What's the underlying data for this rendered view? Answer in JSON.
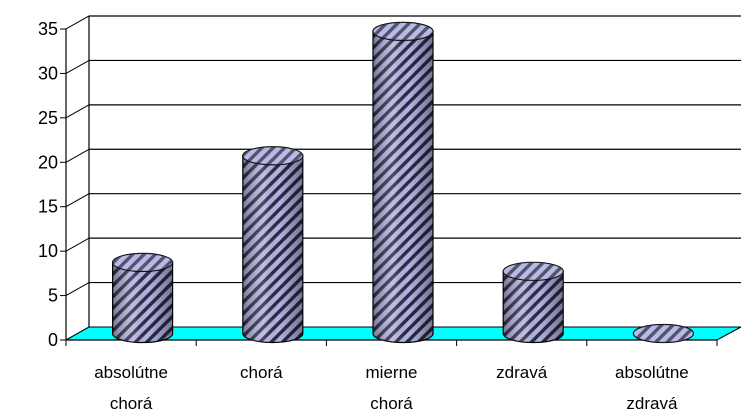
{
  "chart_data": {
    "type": "bar",
    "style": "3d-cylinder",
    "title": "",
    "xlabel": "",
    "ylabel": "",
    "categories": [
      [
        "absolútne",
        "chorá"
      ],
      [
        "chorá"
      ],
      [
        "mierne",
        "chorá"
      ],
      [
        "zdravá"
      ],
      [
        "absolútne",
        "zdravá"
      ]
    ],
    "values": [
      8,
      20,
      34,
      7,
      0
    ],
    "ylim": [
      0,
      35
    ],
    "yticks": [
      "0",
      "5",
      "10",
      "15",
      "20",
      "25",
      "30",
      "35"
    ],
    "grid": true,
    "legend": "none",
    "colors": {
      "floor": "#00ffff",
      "bar_fill": "#b3b3e6",
      "bar_stripe": "#2a2a40",
      "bar_top": "#d0d0f2",
      "grid": "#000000"
    }
  }
}
